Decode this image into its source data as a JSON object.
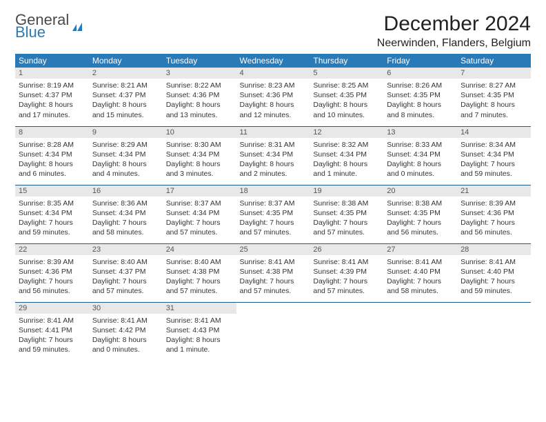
{
  "logo": {
    "part1": "General",
    "part2": "Blue"
  },
  "title": "December 2024",
  "location": "Neerwinden, Flanders, Belgium",
  "colors": {
    "header_bg": "#2a7ab8",
    "header_text": "#ffffff",
    "daynum_bg": "#e8e8e8",
    "row_divider": "#1f5a8a",
    "logo_blue": "#2a7ab8",
    "text": "#333333"
  },
  "daysOfWeek": [
    "Sunday",
    "Monday",
    "Tuesday",
    "Wednesday",
    "Thursday",
    "Friday",
    "Saturday"
  ],
  "weeks": [
    [
      {
        "n": 1,
        "sr": "8:19 AM",
        "ss": "4:37 PM",
        "dl": "8 hours and 17 minutes."
      },
      {
        "n": 2,
        "sr": "8:21 AM",
        "ss": "4:37 PM",
        "dl": "8 hours and 15 minutes."
      },
      {
        "n": 3,
        "sr": "8:22 AM",
        "ss": "4:36 PM",
        "dl": "8 hours and 13 minutes."
      },
      {
        "n": 4,
        "sr": "8:23 AM",
        "ss": "4:36 PM",
        "dl": "8 hours and 12 minutes."
      },
      {
        "n": 5,
        "sr": "8:25 AM",
        "ss": "4:35 PM",
        "dl": "8 hours and 10 minutes."
      },
      {
        "n": 6,
        "sr": "8:26 AM",
        "ss": "4:35 PM",
        "dl": "8 hours and 8 minutes."
      },
      {
        "n": 7,
        "sr": "8:27 AM",
        "ss": "4:35 PM",
        "dl": "8 hours and 7 minutes."
      }
    ],
    [
      {
        "n": 8,
        "sr": "8:28 AM",
        "ss": "4:34 PM",
        "dl": "8 hours and 6 minutes."
      },
      {
        "n": 9,
        "sr": "8:29 AM",
        "ss": "4:34 PM",
        "dl": "8 hours and 4 minutes."
      },
      {
        "n": 10,
        "sr": "8:30 AM",
        "ss": "4:34 PM",
        "dl": "8 hours and 3 minutes."
      },
      {
        "n": 11,
        "sr": "8:31 AM",
        "ss": "4:34 PM",
        "dl": "8 hours and 2 minutes."
      },
      {
        "n": 12,
        "sr": "8:32 AM",
        "ss": "4:34 PM",
        "dl": "8 hours and 1 minute."
      },
      {
        "n": 13,
        "sr": "8:33 AM",
        "ss": "4:34 PM",
        "dl": "8 hours and 0 minutes."
      },
      {
        "n": 14,
        "sr": "8:34 AM",
        "ss": "4:34 PM",
        "dl": "7 hours and 59 minutes."
      }
    ],
    [
      {
        "n": 15,
        "sr": "8:35 AM",
        "ss": "4:34 PM",
        "dl": "7 hours and 59 minutes."
      },
      {
        "n": 16,
        "sr": "8:36 AM",
        "ss": "4:34 PM",
        "dl": "7 hours and 58 minutes."
      },
      {
        "n": 17,
        "sr": "8:37 AM",
        "ss": "4:34 PM",
        "dl": "7 hours and 57 minutes."
      },
      {
        "n": 18,
        "sr": "8:37 AM",
        "ss": "4:35 PM",
        "dl": "7 hours and 57 minutes."
      },
      {
        "n": 19,
        "sr": "8:38 AM",
        "ss": "4:35 PM",
        "dl": "7 hours and 57 minutes."
      },
      {
        "n": 20,
        "sr": "8:38 AM",
        "ss": "4:35 PM",
        "dl": "7 hours and 56 minutes."
      },
      {
        "n": 21,
        "sr": "8:39 AM",
        "ss": "4:36 PM",
        "dl": "7 hours and 56 minutes."
      }
    ],
    [
      {
        "n": 22,
        "sr": "8:39 AM",
        "ss": "4:36 PM",
        "dl": "7 hours and 56 minutes."
      },
      {
        "n": 23,
        "sr": "8:40 AM",
        "ss": "4:37 PM",
        "dl": "7 hours and 57 minutes."
      },
      {
        "n": 24,
        "sr": "8:40 AM",
        "ss": "4:38 PM",
        "dl": "7 hours and 57 minutes."
      },
      {
        "n": 25,
        "sr": "8:41 AM",
        "ss": "4:38 PM",
        "dl": "7 hours and 57 minutes."
      },
      {
        "n": 26,
        "sr": "8:41 AM",
        "ss": "4:39 PM",
        "dl": "7 hours and 57 minutes."
      },
      {
        "n": 27,
        "sr": "8:41 AM",
        "ss": "4:40 PM",
        "dl": "7 hours and 58 minutes."
      },
      {
        "n": 28,
        "sr": "8:41 AM",
        "ss": "4:40 PM",
        "dl": "7 hours and 59 minutes."
      }
    ],
    [
      {
        "n": 29,
        "sr": "8:41 AM",
        "ss": "4:41 PM",
        "dl": "7 hours and 59 minutes."
      },
      {
        "n": 30,
        "sr": "8:41 AM",
        "ss": "4:42 PM",
        "dl": "8 hours and 0 minutes."
      },
      {
        "n": 31,
        "sr": "8:41 AM",
        "ss": "4:43 PM",
        "dl": "8 hours and 1 minute."
      },
      null,
      null,
      null,
      null
    ]
  ],
  "labels": {
    "sunrise": "Sunrise:",
    "sunset": "Sunset:",
    "daylight": "Daylight:"
  }
}
